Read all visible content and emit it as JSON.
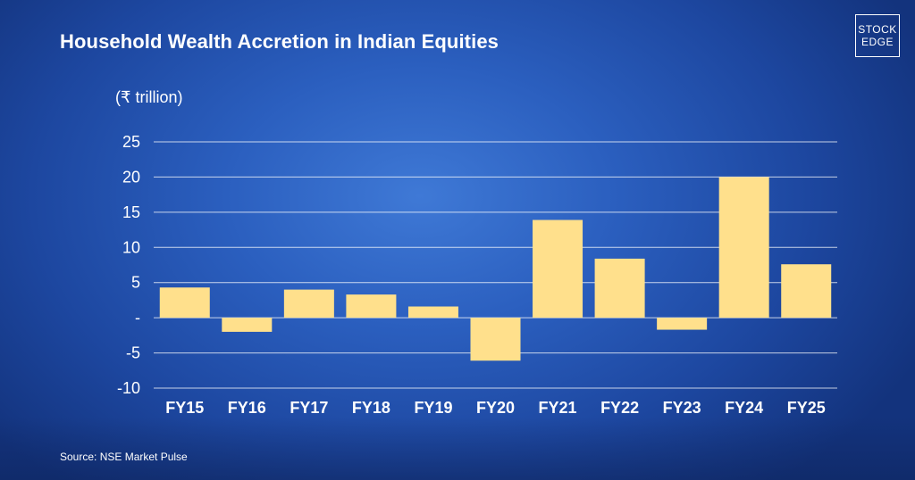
{
  "chart_data": {
    "type": "bar",
    "title": "Household Wealth Accretion in Indian Equities",
    "ylabel": "(₹ trillion)",
    "xlabel": "",
    "categories": [
      "FY15",
      "FY16",
      "FY17",
      "FY18",
      "FY19",
      "FY20",
      "FY21",
      "FY22",
      "FY23",
      "FY24",
      "FY25"
    ],
    "values": [
      4.3,
      -2.0,
      4.0,
      3.3,
      1.6,
      -6.1,
      13.9,
      8.4,
      -1.7,
      20.0,
      7.6
    ],
    "ylim": [
      -10,
      25
    ],
    "yticks": [
      25,
      20,
      15,
      10,
      5,
      0,
      -5,
      -10
    ],
    "ytick_labels": [
      "25",
      "20",
      "15",
      "10",
      "5",
      "-",
      "-5",
      "-10"
    ],
    "grid": true,
    "bar_color": "#ffe08c",
    "source": "Source: NSE Market Pulse"
  },
  "brand": {
    "line1": "STOCK",
    "line2": "EDGE"
  }
}
